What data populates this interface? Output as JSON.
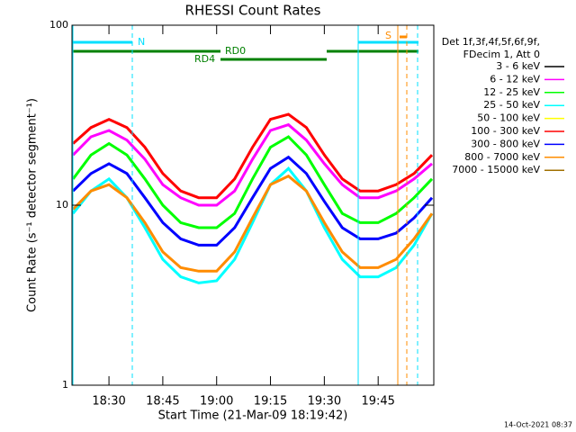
{
  "chart_data": {
    "type": "line",
    "title": "RHESSI Count Rates",
    "x_label": "Start Time (21-Mar-09 18:19:42)",
    "y_label": "Count Rate (s⁻¹ detector segment⁻¹)",
    "legend_header": [
      "Det 1f,3f,4f,5f,6f,9f,",
      "FDecim 1, Att 0"
    ],
    "timestamp": "14-Oct-2021 08:37",
    "annotations": [
      "N",
      "RD0",
      "RD4",
      "S"
    ],
    "log_y": true,
    "xlim": [
      19.7,
      120.5
    ],
    "ylim": [
      1,
      100
    ],
    "xticks": [
      {
        "value": 30,
        "label": "18:30"
      },
      {
        "value": 45,
        "label": "18:45"
      },
      {
        "value": 60,
        "label": "19:00"
      },
      {
        "value": 75,
        "label": "19:15"
      },
      {
        "value": 90,
        "label": "19:30"
      },
      {
        "value": 105,
        "label": "19:45"
      }
    ],
    "yticks": [
      1,
      10,
      100
    ],
    "x": [
      20,
      25,
      30,
      35,
      40,
      45,
      50,
      55,
      60,
      65,
      70,
      75,
      80,
      85,
      90,
      95,
      100,
      105,
      110,
      115,
      120
    ],
    "series": [
      {
        "name": "3 - 6 keV",
        "color": "#000000",
        "values": [
          null,
          null,
          null,
          null,
          null,
          null,
          null,
          null,
          null,
          null,
          null,
          null,
          null,
          null,
          null,
          null,
          null,
          null,
          null,
          null,
          null
        ]
      },
      {
        "name": "6 - 12 keV",
        "color": "#ff00ff",
        "values": [
          19,
          24,
          26,
          23,
          18,
          13,
          11,
          10,
          10,
          12,
          18,
          26,
          28,
          23,
          17,
          13,
          11,
          11,
          12,
          14,
          17
        ]
      },
      {
        "name": "12 - 25 keV",
        "color": "#00ff00",
        "values": [
          14,
          19,
          22,
          19,
          14,
          10,
          8,
          7.5,
          7.5,
          9,
          14,
          21,
          24,
          19,
          13,
          9,
          8,
          8,
          9,
          11,
          14
        ]
      },
      {
        "name": "25 - 50 keV",
        "color": "#00ffff",
        "values": [
          9,
          12,
          14,
          11,
          7.5,
          5,
          4,
          3.7,
          3.8,
          5,
          8,
          13,
          16,
          12,
          7.5,
          5,
          4,
          4,
          4.5,
          6,
          9
        ]
      },
      {
        "name": "50 - 100 keV",
        "color": "#ffff00",
        "values": [
          null,
          null,
          null,
          null,
          null,
          null,
          null,
          null,
          null,
          null,
          null,
          null,
          null,
          null,
          null,
          null,
          null,
          null,
          null,
          null,
          null
        ]
      },
      {
        "name": "100 - 300 keV",
        "color": "#ff0000",
        "values": [
          22,
          27,
          30,
          27,
          21,
          15,
          12,
          11,
          11,
          14,
          21,
          30,
          32,
          27,
          19,
          14,
          12,
          12,
          13,
          15,
          19
        ]
      },
      {
        "name": "300 - 800 keV",
        "color": "#0000ff",
        "values": [
          12,
          15,
          17,
          15,
          11,
          8,
          6.5,
          6,
          6,
          7.5,
          11,
          16,
          18.5,
          15,
          10.5,
          7.5,
          6.5,
          6.5,
          7,
          8.5,
          11
        ]
      },
      {
        "name": "800 - 7000 keV",
        "color": "#ff8c00",
        "values": [
          9.5,
          12,
          13,
          11,
          8,
          5.5,
          4.5,
          4.3,
          4.3,
          5.5,
          8.5,
          13,
          14.5,
          12,
          8,
          5.5,
          4.5,
          4.5,
          5,
          6.5,
          9
        ]
      },
      {
        "name": "7000 - 15000 keV",
        "color": "#a07000",
        "values": [
          null,
          null,
          null,
          null,
          null,
          null,
          null,
          null,
          null,
          null,
          null,
          null,
          null,
          null,
          null,
          null,
          null,
          null,
          null,
          null,
          null
        ]
      }
    ]
  }
}
